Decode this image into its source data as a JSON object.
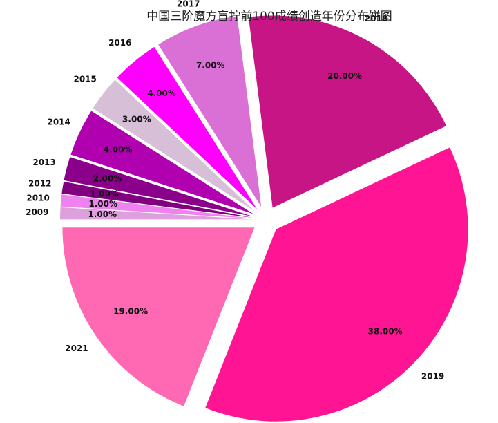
{
  "chart_data": {
    "type": "pie",
    "title": "中国三阶魔方盲拧前100成绩创造年份分布饼图",
    "categories": [
      "2009",
      "2010",
      "2012",
      "2013",
      "2014",
      "2015",
      "2016",
      "2017",
      "2018",
      "2019",
      "2021"
    ],
    "values": [
      1,
      1,
      1,
      2,
      4,
      3,
      4,
      7,
      20,
      38,
      19
    ],
    "value_labels": [
      "1.00%",
      "1.00%",
      "1.00%",
      "2.00%",
      "4.00%",
      "3.00%",
      "4.00%",
      "7.00%",
      "20.00%",
      "38.00%",
      "19.00%"
    ],
    "colors": [
      "#dda0dd",
      "#ee82ee",
      "#800080",
      "#8b008b",
      "#b000b0",
      "#d8bfd8",
      "#ff00ff",
      "#da70d6",
      "#c71585",
      "#ff1493",
      "#ff69b4"
    ],
    "start_angle": 180,
    "clockwise": true
  }
}
